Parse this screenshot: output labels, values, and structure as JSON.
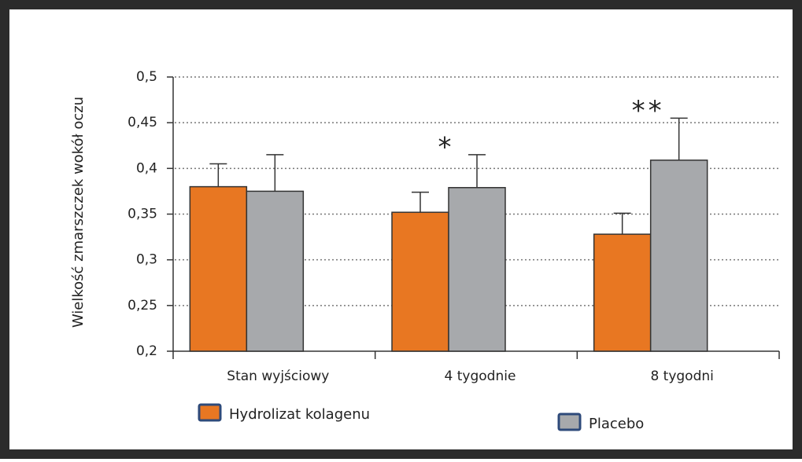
{
  "chart_data": {
    "type": "bar",
    "y_label": "Wielkość zmarszczek wokół oczu",
    "categories": [
      "Stan wyjściowy",
      "4 tygodnie",
      "8 tygodni"
    ],
    "series": [
      {
        "name": "Hydrolizat kolagenu",
        "color": "#e87722",
        "values": [
          0.38,
          0.352,
          0.328
        ],
        "errors": [
          0.025,
          0.022,
          0.023
        ]
      },
      {
        "name": "Placebo",
        "color": "#a7a9ac",
        "values": [
          0.375,
          0.379,
          0.409
        ],
        "errors": [
          0.04,
          0.036,
          0.046
        ]
      }
    ],
    "annotations": [
      "*",
      "**"
    ],
    "ylim": [
      0.2,
      0.5
    ],
    "yticks": [
      {
        "value": 0.2,
        "label": "0,2"
      },
      {
        "value": 0.25,
        "label": "0,25"
      },
      {
        "value": 0.3,
        "label": "0,3"
      },
      {
        "value": 0.35,
        "label": "0,35"
      },
      {
        "value": 0.4,
        "label": "0,4"
      },
      {
        "value": 0.45,
        "label": "0,45"
      },
      {
        "value": 0.5,
        "label": "0,5"
      }
    ],
    "grid": true
  }
}
